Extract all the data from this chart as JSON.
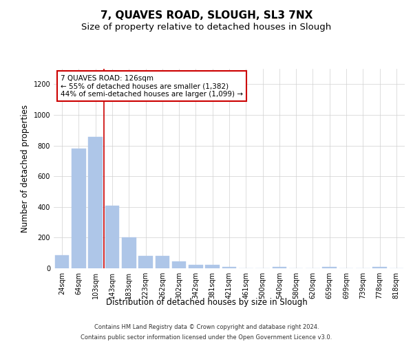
{
  "title": "7, QUAVES ROAD, SLOUGH, SL3 7NX",
  "subtitle": "Size of property relative to detached houses in Slough",
  "xlabel": "Distribution of detached houses by size in Slough",
  "ylabel": "Number of detached properties",
  "categories": [
    "24sqm",
    "64sqm",
    "103sqm",
    "143sqm",
    "183sqm",
    "223sqm",
    "262sqm",
    "302sqm",
    "342sqm",
    "381sqm",
    "421sqm",
    "461sqm",
    "500sqm",
    "540sqm",
    "580sqm",
    "620sqm",
    "659sqm",
    "699sqm",
    "739sqm",
    "778sqm",
    "818sqm"
  ],
  "values": [
    85,
    780,
    855,
    410,
    200,
    80,
    80,
    47,
    22,
    22,
    10,
    0,
    0,
    10,
    0,
    0,
    10,
    0,
    0,
    10,
    0
  ],
  "bar_color": "#aec6e8",
  "bar_edgecolor": "#aec6e8",
  "ylim": [
    0,
    1300
  ],
  "yticks": [
    0,
    200,
    400,
    600,
    800,
    1000,
    1200
  ],
  "redline_x": 2.5,
  "annotation_line1": "7 QUAVES ROAD: 126sqm",
  "annotation_line2": "← 55% of detached houses are smaller (1,382)",
  "annotation_line3": "44% of semi-detached houses are larger (1,099) →",
  "annotation_box_color": "#ffffff",
  "annotation_box_edgecolor": "#cc0000",
  "footer_line1": "Contains HM Land Registry data © Crown copyright and database right 2024.",
  "footer_line2": "Contains public sector information licensed under the Open Government Licence v3.0.",
  "background_color": "#ffffff",
  "grid_color": "#d0d0d0",
  "title_fontsize": 11,
  "subtitle_fontsize": 9.5,
  "tick_fontsize": 7,
  "ylabel_fontsize": 8.5,
  "xlabel_fontsize": 8.5,
  "annotation_fontsize": 7.5,
  "footer_fontsize": 6
}
